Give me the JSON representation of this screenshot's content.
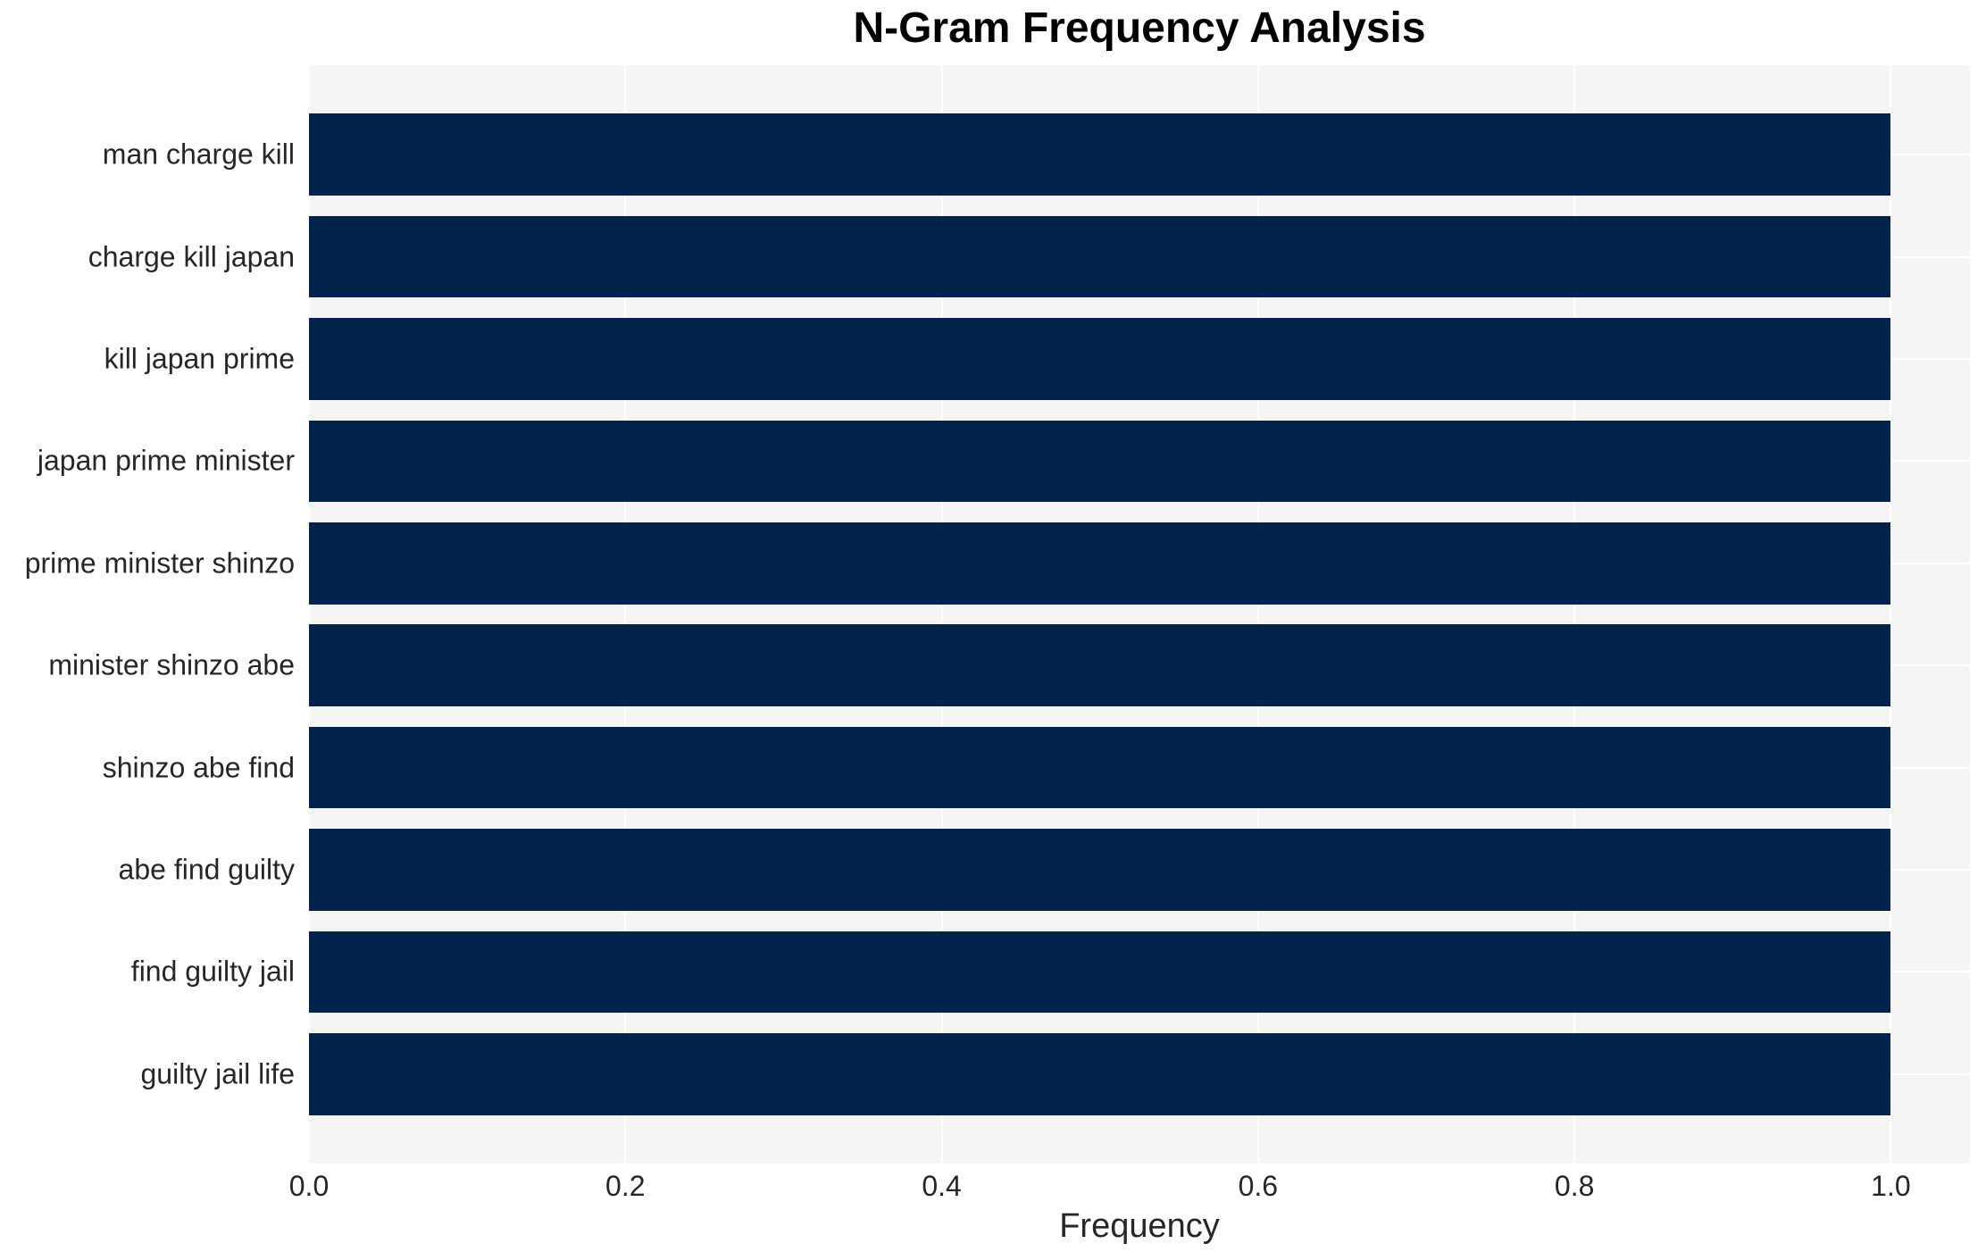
{
  "chart_data": {
    "type": "bar",
    "orientation": "horizontal",
    "title": "N-Gram Frequency Analysis",
    "xlabel": "Frequency",
    "ylabel": "",
    "categories": [
      "man charge kill",
      "charge kill japan",
      "kill japan prime",
      "japan prime minister",
      "prime minister shinzo",
      "minister shinzo abe",
      "shinzo abe find",
      "abe find guilty",
      "find guilty jail",
      "guilty jail life"
    ],
    "values": [
      1.0,
      1.0,
      1.0,
      1.0,
      1.0,
      1.0,
      1.0,
      1.0,
      1.0,
      1.0
    ],
    "xlim": [
      0,
      1.05
    ],
    "xticks": [
      0.0,
      0.2,
      0.4,
      0.6,
      0.8,
      1.0
    ],
    "xtick_labels": [
      "0.0",
      "0.2",
      "0.4",
      "0.6",
      "0.8",
      "1.0"
    ],
    "bar_height_frac": 0.8,
    "grid": true,
    "legend": false,
    "colors": {
      "bar": "#02234C",
      "plot_background": "#F5F5F5",
      "figure_background": "#FFFFFF",
      "gridline": "#FFFFFF",
      "tick_text": "#262626",
      "title_text": "#000000"
    }
  }
}
